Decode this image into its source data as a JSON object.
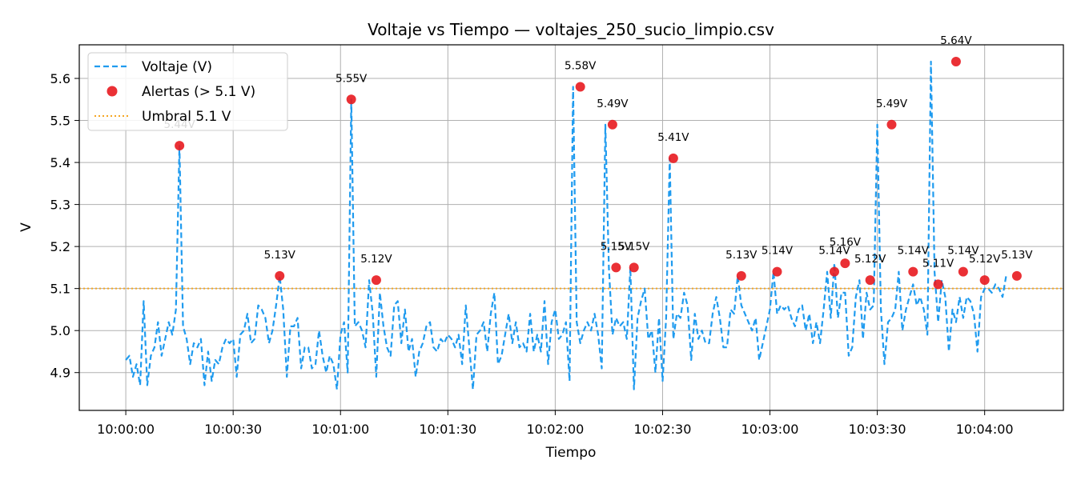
{
  "chart_data": {
    "type": "line",
    "title": "Voltaje vs Tiempo — voltajes_250_sucio_limpio.csv",
    "xlabel": "Tiempo",
    "ylabel": "V",
    "x_unit": "seconds",
    "x_start": "10:00:00",
    "xlim": [
      -13,
      262
    ],
    "ylim": [
      4.81,
      5.68
    ],
    "xticks": [
      {
        "value": 0,
        "label": "10:00:00"
      },
      {
        "value": 30,
        "label": "10:00:30"
      },
      {
        "value": 60,
        "label": "10:01:00"
      },
      {
        "value": 90,
        "label": "10:01:30"
      },
      {
        "value": 120,
        "label": "10:02:00"
      },
      {
        "value": 150,
        "label": "10:02:30"
      },
      {
        "value": 180,
        "label": "10:03:00"
      },
      {
        "value": 210,
        "label": "10:03:30"
      },
      {
        "value": 240,
        "label": "10:04:00"
      }
    ],
    "yticks": [
      {
        "value": 4.9,
        "label": "4.9"
      },
      {
        "value": 5.0,
        "label": "5.0"
      },
      {
        "value": 5.1,
        "label": "5.1"
      },
      {
        "value": 5.2,
        "label": "5.2"
      },
      {
        "value": 5.3,
        "label": "5.3"
      },
      {
        "value": 5.4,
        "label": "5.4"
      },
      {
        "value": 5.5,
        "label": "5.5"
      },
      {
        "value": 5.6,
        "label": "5.6"
      }
    ],
    "grid": true,
    "legend_position": "top-left",
    "series": [
      {
        "name": "Voltaje (V)",
        "style": "dashed",
        "color": "#1f9bef",
        "points": [
          [
            0,
            4.93
          ],
          [
            1,
            4.94
          ],
          [
            2,
            4.89
          ],
          [
            3,
            4.92
          ],
          [
            4,
            4.87
          ],
          [
            5,
            5.07
          ],
          [
            6,
            4.87
          ],
          [
            7,
            4.94
          ],
          [
            8,
            4.96
          ],
          [
            9,
            5.02
          ],
          [
            10,
            4.94
          ],
          [
            11,
            4.98
          ],
          [
            12,
            5.02
          ],
          [
            13,
            4.99
          ],
          [
            14,
            5.05
          ],
          [
            15,
            5.44
          ],
          [
            16,
            5.01
          ],
          [
            17,
            4.98
          ],
          [
            18,
            4.92
          ],
          [
            19,
            4.97
          ],
          [
            20,
            4.96
          ],
          [
            21,
            4.98
          ],
          [
            22,
            4.87
          ],
          [
            23,
            4.95
          ],
          [
            24,
            4.88
          ],
          [
            25,
            4.93
          ],
          [
            26,
            4.92
          ],
          [
            27,
            4.96
          ],
          [
            28,
            4.98
          ],
          [
            29,
            4.97
          ],
          [
            30,
            4.98
          ],
          [
            31,
            4.89
          ],
          [
            32,
            4.99
          ],
          [
            33,
            5.0
          ],
          [
            34,
            5.04
          ],
          [
            35,
            4.97
          ],
          [
            36,
            4.98
          ],
          [
            37,
            5.06
          ],
          [
            38,
            5.05
          ],
          [
            39,
            5.03
          ],
          [
            40,
            4.97
          ],
          [
            41,
            5.0
          ],
          [
            42,
            5.06
          ],
          [
            43,
            5.13
          ],
          [
            44,
            5.05
          ],
          [
            45,
            4.89
          ],
          [
            46,
            5.01
          ],
          [
            47,
            5.01
          ],
          [
            48,
            5.03
          ],
          [
            49,
            4.91
          ],
          [
            50,
            4.96
          ],
          [
            51,
            4.96
          ],
          [
            52,
            4.91
          ],
          [
            53,
            4.92
          ],
          [
            54,
            5.0
          ],
          [
            55,
            4.94
          ],
          [
            56,
            4.9
          ],
          [
            57,
            4.94
          ],
          [
            58,
            4.92
          ],
          [
            59,
            4.86
          ],
          [
            60,
            4.99
          ],
          [
            61,
            5.02
          ],
          [
            62,
            4.9
          ],
          [
            63,
            5.55
          ],
          [
            64,
            5.01
          ],
          [
            65,
            5.02
          ],
          [
            66,
            5.0
          ],
          [
            67,
            4.96
          ],
          [
            68,
            5.12
          ],
          [
            69,
            5.04
          ],
          [
            70,
            4.89
          ],
          [
            71,
            5.09
          ],
          [
            72,
            5.01
          ],
          [
            73,
            4.96
          ],
          [
            74,
            4.94
          ],
          [
            75,
            5.06
          ],
          [
            76,
            5.07
          ],
          [
            77,
            4.97
          ],
          [
            78,
            5.05
          ],
          [
            79,
            4.95
          ],
          [
            80,
            4.98
          ],
          [
            81,
            4.89
          ],
          [
            82,
            4.95
          ],
          [
            83,
            4.97
          ],
          [
            84,
            5.01
          ],
          [
            85,
            5.02
          ],
          [
            86,
            4.96
          ],
          [
            87,
            4.95
          ],
          [
            88,
            4.98
          ],
          [
            89,
            4.97
          ],
          [
            90,
            4.99
          ],
          [
            91,
            4.98
          ],
          [
            92,
            4.96
          ],
          [
            93,
            4.99
          ],
          [
            94,
            4.92
          ],
          [
            95,
            5.06
          ],
          [
            96,
            4.96
          ],
          [
            97,
            4.86
          ],
          [
            98,
            4.99
          ],
          [
            99,
            5.0
          ],
          [
            100,
            5.02
          ],
          [
            101,
            4.95
          ],
          [
            102,
            5.04
          ],
          [
            103,
            5.09
          ],
          [
            104,
            4.92
          ],
          [
            105,
            4.94
          ],
          [
            106,
            4.99
          ],
          [
            107,
            5.04
          ],
          [
            108,
            4.97
          ],
          [
            109,
            5.02
          ],
          [
            110,
            4.96
          ],
          [
            111,
            4.97
          ],
          [
            112,
            4.95
          ],
          [
            113,
            5.04
          ],
          [
            114,
            4.95
          ],
          [
            115,
            4.99
          ],
          [
            116,
            4.95
          ],
          [
            117,
            5.07
          ],
          [
            118,
            4.92
          ],
          [
            119,
            5.02
          ],
          [
            120,
            5.05
          ],
          [
            121,
            4.98
          ],
          [
            122,
            4.99
          ],
          [
            123,
            5.02
          ],
          [
            124,
            4.88
          ],
          [
            125,
            5.58
          ],
          [
            126,
            5.02
          ],
          [
            127,
            4.97
          ],
          [
            128,
            5.0
          ],
          [
            129,
            5.02
          ],
          [
            130,
            5.0
          ],
          [
            131,
            5.04
          ],
          [
            132,
            4.99
          ],
          [
            133,
            4.91
          ],
          [
            134,
            5.49
          ],
          [
            135,
            5.15
          ],
          [
            136,
            4.99
          ],
          [
            137,
            5.03
          ],
          [
            138,
            5.01
          ],
          [
            139,
            5.02
          ],
          [
            140,
            4.98
          ],
          [
            141,
            5.15
          ],
          [
            142,
            4.86
          ],
          [
            143,
            5.03
          ],
          [
            144,
            5.07
          ],
          [
            145,
            5.1
          ],
          [
            146,
            4.98
          ],
          [
            147,
            5.0
          ],
          [
            148,
            4.9
          ],
          [
            149,
            5.03
          ],
          [
            150,
            4.88
          ],
          [
            151,
            5.03
          ],
          [
            152,
            5.41
          ],
          [
            153,
            4.98
          ],
          [
            154,
            5.04
          ],
          [
            155,
            5.03
          ],
          [
            156,
            5.09
          ],
          [
            157,
            5.06
          ],
          [
            158,
            4.93
          ],
          [
            159,
            5.04
          ],
          [
            160,
            4.98
          ],
          [
            161,
            5.0
          ],
          [
            162,
            4.97
          ],
          [
            163,
            4.97
          ],
          [
            164,
            5.04
          ],
          [
            165,
            5.08
          ],
          [
            166,
            5.03
          ],
          [
            167,
            4.96
          ],
          [
            168,
            4.96
          ],
          [
            169,
            5.05
          ],
          [
            170,
            5.04
          ],
          [
            171,
            5.13
          ],
          [
            172,
            5.06
          ],
          [
            173,
            5.04
          ],
          [
            174,
            5.02
          ],
          [
            175,
            5.0
          ],
          [
            176,
            5.03
          ],
          [
            177,
            4.93
          ],
          [
            178,
            4.97
          ],
          [
            179,
            5.01
          ],
          [
            180,
            5.05
          ],
          [
            181,
            5.14
          ],
          [
            182,
            5.04
          ],
          [
            183,
            5.06
          ],
          [
            184,
            5.05
          ],
          [
            185,
            5.06
          ],
          [
            186,
            5.03
          ],
          [
            187,
            5.01
          ],
          [
            188,
            5.05
          ],
          [
            189,
            5.06
          ],
          [
            190,
            5.0
          ],
          [
            191,
            5.04
          ],
          [
            192,
            4.97
          ],
          [
            193,
            5.02
          ],
          [
            194,
            4.97
          ],
          [
            195,
            5.05
          ],
          [
            196,
            5.14
          ],
          [
            197,
            5.03
          ],
          [
            198,
            5.16
          ],
          [
            199,
            5.03
          ],
          [
            200,
            5.09
          ],
          [
            201,
            5.09
          ],
          [
            202,
            4.94
          ],
          [
            203,
            4.96
          ],
          [
            204,
            5.08
          ],
          [
            205,
            5.12
          ],
          [
            206,
            4.98
          ],
          [
            207,
            5.09
          ],
          [
            208,
            5.05
          ],
          [
            209,
            5.06
          ],
          [
            210,
            5.49
          ],
          [
            211,
            5.05
          ],
          [
            212,
            4.92
          ],
          [
            213,
            5.02
          ],
          [
            214,
            5.03
          ],
          [
            215,
            5.05
          ],
          [
            216,
            5.14
          ],
          [
            217,
            5.0
          ],
          [
            218,
            5.05
          ],
          [
            219,
            5.08
          ],
          [
            220,
            5.11
          ],
          [
            221,
            5.06
          ],
          [
            222,
            5.08
          ],
          [
            223,
            5.05
          ],
          [
            224,
            4.99
          ],
          [
            225,
            5.64
          ],
          [
            226,
            5.14
          ],
          [
            227,
            5.02
          ],
          [
            228,
            5.12
          ],
          [
            229,
            5.08
          ],
          [
            230,
            4.95
          ],
          [
            231,
            5.05
          ],
          [
            232,
            5.02
          ],
          [
            233,
            5.08
          ],
          [
            234,
            5.03
          ],
          [
            235,
            5.08
          ],
          [
            236,
            5.07
          ],
          [
            237,
            5.04
          ],
          [
            238,
            4.95
          ],
          [
            239,
            5.08
          ],
          [
            240,
            5.1
          ],
          [
            241,
            5.1
          ],
          [
            242,
            5.09
          ],
          [
            243,
            5.11
          ],
          [
            244,
            5.1
          ],
          [
            245,
            5.08
          ],
          [
            246,
            5.13
          ]
        ]
      }
    ],
    "alerts": {
      "name": "Alertas (> 5.1 V)",
      "color": "#e8191f",
      "points": [
        {
          "x": 15,
          "y": 5.44,
          "label": "5.44V"
        },
        {
          "x": 43,
          "y": 5.13,
          "label": "5.13V"
        },
        {
          "x": 63,
          "y": 5.55,
          "label": "5.55V"
        },
        {
          "x": 70,
          "y": 5.12,
          "label": "5.12V"
        },
        {
          "x": 127,
          "y": 5.58,
          "label": "5.58V"
        },
        {
          "x": 136,
          "y": 5.49,
          "label": "5.49V"
        },
        {
          "x": 137,
          "y": 5.15,
          "label": "5.15V"
        },
        {
          "x": 142,
          "y": 5.15,
          "label": "5.15V"
        },
        {
          "x": 153,
          "y": 5.41,
          "label": "5.41V"
        },
        {
          "x": 172,
          "y": 5.13,
          "label": "5.13V"
        },
        {
          "x": 182,
          "y": 5.14,
          "label": "5.14V"
        },
        {
          "x": 198,
          "y": 5.14,
          "label": "5.14V"
        },
        {
          "x": 201,
          "y": 5.16,
          "label": "5.16V"
        },
        {
          "x": 208,
          "y": 5.12,
          "label": "5.12V"
        },
        {
          "x": 214,
          "y": 5.49,
          "label": "5.49V"
        },
        {
          "x": 220,
          "y": 5.14,
          "label": "5.14V"
        },
        {
          "x": 227,
          "y": 5.11,
          "label": "5.11V"
        },
        {
          "x": 232,
          "y": 5.64,
          "label": "5.64V"
        },
        {
          "x": 234,
          "y": 5.14,
          "label": "5.14V"
        },
        {
          "x": 240,
          "y": 5.12,
          "label": "5.12V"
        },
        {
          "x": 249,
          "y": 5.13,
          "label": "5.13V"
        }
      ]
    },
    "threshold": {
      "name": "Umbral 5.1 V",
      "value": 5.1,
      "style": "dotted",
      "color": "#f5a623"
    },
    "legend": [
      "Voltaje (V)",
      "Alertas (> 5.1 V)",
      "Umbral 5.1 V"
    ]
  }
}
